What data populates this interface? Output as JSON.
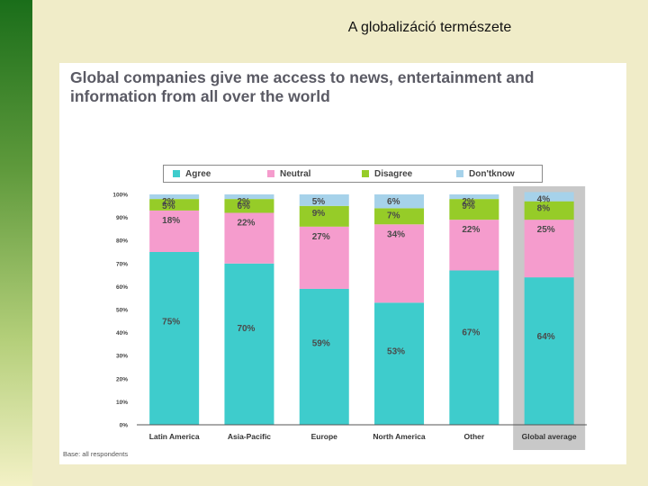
{
  "slide": {
    "title": "A globalizáció természete"
  },
  "chart_data": {
    "type": "bar",
    "stacked": true,
    "title": "Global companies give me access to news, entertainment and information from all over the world",
    "categories": [
      "Latin America",
      "Asia-Pacific",
      "Europe",
      "North America",
      "Other",
      "Global average"
    ],
    "series": [
      {
        "name": "Agree",
        "color": "#3ecccc",
        "values": [
          75,
          70,
          59,
          53,
          67,
          64
        ],
        "labels": [
          "75%",
          "70%",
          "59%",
          "53%",
          "67%",
          "64%"
        ]
      },
      {
        "name": "Neutral",
        "color": "#f59ccd",
        "values": [
          18,
          22,
          27,
          34,
          22,
          25
        ],
        "labels": [
          "18%",
          "22%",
          "27%",
          "34%",
          "22%",
          "25%"
        ]
      },
      {
        "name": "Disagree",
        "color": "#96cc28",
        "values": [
          5,
          6,
          9,
          7,
          9,
          8
        ],
        "labels": [
          "5%",
          "6%",
          "9%",
          "7%",
          "9%",
          "8%"
        ]
      },
      {
        "name": "Don'tknow",
        "color": "#a6d2ea",
        "values": [
          2,
          2,
          5,
          6,
          2,
          4
        ],
        "labels": [
          "2%",
          "2%",
          "5%",
          "6%",
          "2%",
          "4%"
        ]
      }
    ],
    "yticks": [
      "0%",
      "10%",
      "20%",
      "30%",
      "40%",
      "50%",
      "60%",
      "70%",
      "80%",
      "90%",
      "100%"
    ],
    "ylim": [
      0,
      100
    ],
    "highlight_category": "Global average",
    "legend_position": "top",
    "footnote": "Base: all respondents"
  }
}
